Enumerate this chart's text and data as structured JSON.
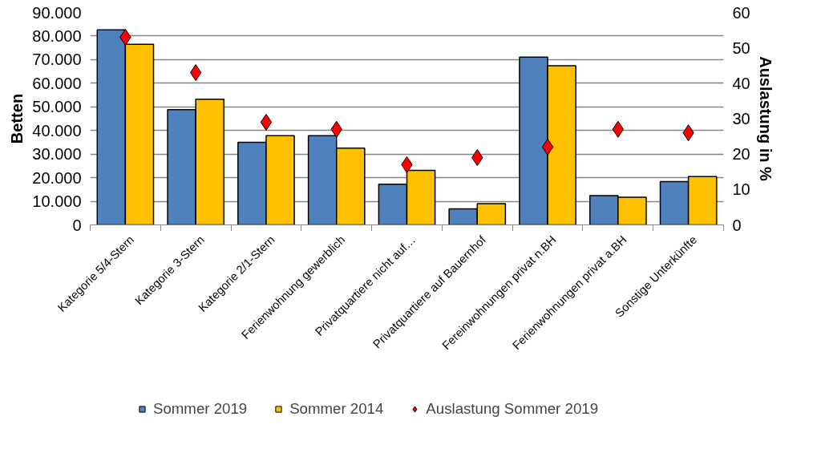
{
  "chart_data": {
    "type": "bar",
    "categories": [
      "Kategorie 5/4-Stern",
      "Kategorie 3-Stern",
      "Kategorie 2/1-Stern",
      "Ferienwohnung gewerblich",
      "Privatquartiere nicht auf…",
      "Privatquartiere auf Bauernhof",
      "Fereinwohnungen privat n.BH",
      "Ferienwohnungen privat a.BH",
      "Sonstige Unterkünfte"
    ],
    "series": [
      {
        "name": "Sommer 2019",
        "color": "#4f81bd",
        "values": [
          82600,
          48800,
          35000,
          37800,
          17200,
          6800,
          71100,
          12400,
          18300
        ]
      },
      {
        "name": "Sommer 2014",
        "color": "#ffc000",
        "values": [
          76500,
          53200,
          37800,
          32500,
          23100,
          9000,
          67400,
          11700,
          20500
        ]
      },
      {
        "name": "Auslastung Sommer 2019",
        "type": "scatter",
        "axis": "y2",
        "marker": "diamond",
        "color": "#ff0000",
        "values": [
          53,
          43,
          29,
          27,
          17,
          19,
          22,
          27,
          26
        ]
      }
    ],
    "ylabel": "Betten",
    "y2label": "Auslastung in %",
    "ylim": [
      0,
      90000
    ],
    "yticks": [
      0,
      {
        "value": 10000,
        "label": "10.000"
      },
      {
        "value": 20000,
        "label": "20.000"
      },
      {
        "value": 30000,
        "label": "30.000"
      },
      {
        "value": 40000,
        "label": "40.000"
      },
      {
        "value": 50000,
        "label": "50.000"
      },
      {
        "value": 60000,
        "label": "60.000"
      },
      {
        "value": 70000,
        "label": "70.000"
      },
      {
        "value": 80000,
        "label": "80.000"
      },
      {
        "value": 90000,
        "label": "90.000"
      }
    ],
    "y2lim": [
      0,
      60
    ],
    "y2ticks": [
      0,
      10,
      20,
      30,
      40,
      50,
      60
    ],
    "grid": "y",
    "legend": "bottom"
  }
}
